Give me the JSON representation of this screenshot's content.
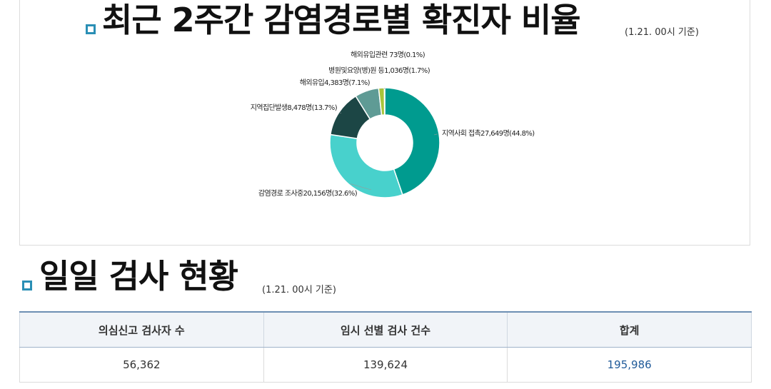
{
  "section1": {
    "title": "최근 2주간 감염경로별 확진자 비율",
    "note": "(1.21. 00시 기준)"
  },
  "chart_data": {
    "type": "pie",
    "donut": true,
    "title": "최근 2주간 감염경로별 확진자 비율",
    "slices": [
      {
        "label": "지역사회 접촉27,649명(44.8%)",
        "value": 27649,
        "percent": 44.8,
        "color": "#009b8f"
      },
      {
        "label": "감염경로 조사중20,156명(32.6%)",
        "value": 20156,
        "percent": 32.6,
        "color": "#48d1cc"
      },
      {
        "label": "지역집단발생8,478명(13.7%)",
        "value": 8478,
        "percent": 13.7,
        "color": "#1c4645"
      },
      {
        "label": "해외유입4,383명(7.1%)",
        "value": 4383,
        "percent": 7.1,
        "color": "#5f9b95"
      },
      {
        "label": "병원및요양(병)원 등1,036명(1.7%)",
        "value": 1036,
        "percent": 1.7,
        "color": "#a8c43a"
      },
      {
        "label": "해외유입관련 73명(0.1%)",
        "value": 73,
        "percent": 0.1,
        "color": "#7a6a4a"
      }
    ]
  },
  "section2": {
    "title": "일일 검사 현황",
    "note": "(1.21. 00시 기준)"
  },
  "table": {
    "headers": [
      "의심신고 검사자 수",
      "임시 선별 검사 건수",
      "합계"
    ],
    "values": [
      "56,362",
      "139,624",
      "195,986"
    ]
  }
}
